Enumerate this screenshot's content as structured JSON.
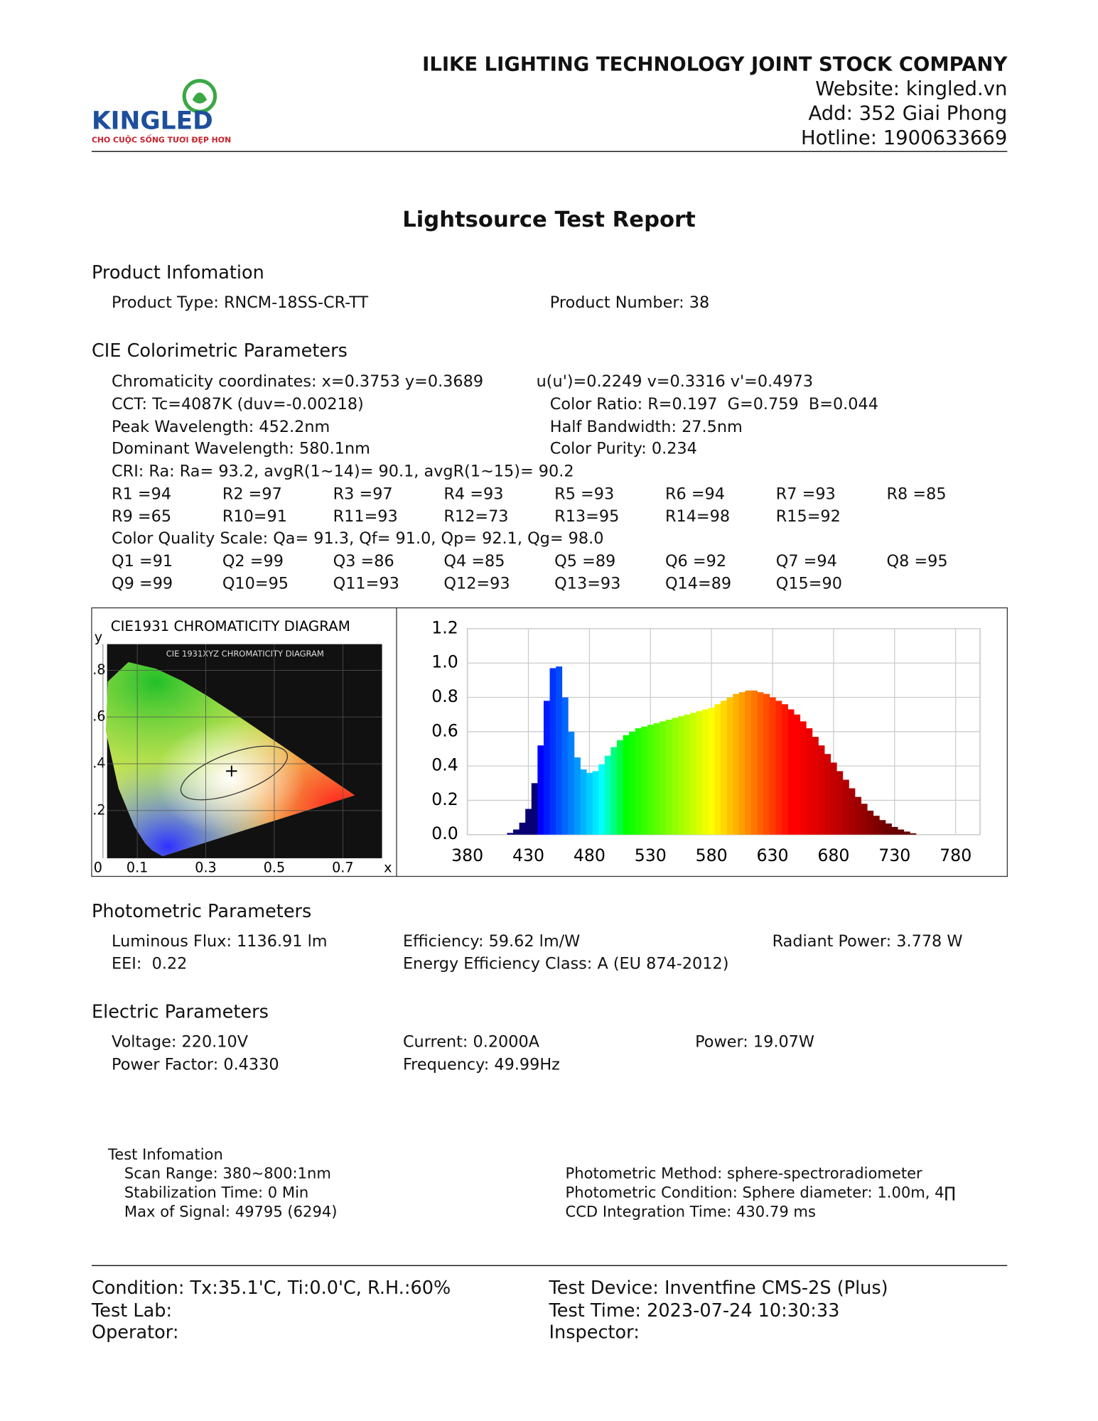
{
  "header": {
    "company": "ILIKE LIGHTING TECHNOLOGY JOINT STOCK COMPANY",
    "website": "Website: kingled.vn",
    "address": "Add: 352 Giai Phong",
    "hotline": "Hotline: 1900633669",
    "logo": "KINGLED",
    "tagline": "CHO CUỘC SỐNG TƯƠI ĐẸP HƠN"
  },
  "title": "Lightsource Test Report",
  "product": {
    "heading": "Product Infomation",
    "rows": [
      [
        "Product Type: RNCM-18SS-CR-TT",
        "Product Number: 38"
      ]
    ]
  },
  "cie": {
    "heading": "CIE Colorimetric Parameters",
    "rows": [
      [
        "Chromaticity coordinates: x=0.3753 y=0.3689",
        "u(u')=0.2249 v=0.3316 v'=0.4973"
      ],
      [
        "CCT: Tc=4087K (duv=-0.00218)",
        "Color Ratio: R=0.197  G=0.759  B=0.044"
      ],
      [
        "Peak Wavelength: 452.2nm",
        "Half Bandwidth: 27.5nm"
      ],
      [
        "Dominant Wavelength: 580.1nm",
        "Color Purity: 0.234"
      ],
      [
        "CRI: Ra: Ra= 93.2, avgR(1~14)= 90.1, avgR(1~15)= 90.2"
      ],
      [
        "R1 =94",
        "R2 =97",
        "R3 =97",
        "R4 =93",
        "R5 =93",
        "R6 =94",
        "R7 =93",
        "R8 =85"
      ],
      [
        "R9 =65",
        "R10=91",
        "R11=93",
        "R12=73",
        "R13=95",
        "R14=98",
        "R15=92"
      ],
      [
        "Color Quality Scale: Qa= 91.3, Qf= 91.0, Qp= 92.1, Qg= 98.0"
      ],
      [
        "Q1 =91",
        "Q2 =99",
        "Q3 =86",
        "Q4 =85",
        "Q5 =89",
        "Q6 =92",
        "Q7 =94",
        "Q8 =95"
      ],
      [
        "Q9 =99",
        "Q10=95",
        "Q11=93",
        "Q12=93",
        "Q13=93",
        "Q14=89",
        "Q15=90"
      ]
    ]
  },
  "chart_data": [
    {
      "type": "scatter",
      "title": "CIE1931 CHROMATICITY DIAGRAM",
      "subtitle": "CIE 1931XYZ CHROMATICITY DIAGRAM",
      "xlabel": "x",
      "ylabel": "y",
      "xlim": [
        0,
        0.8
      ],
      "ylim": [
        0,
        0.9
      ],
      "xticks": [
        0,
        0.1,
        0.3,
        0.5,
        0.7
      ],
      "yticks": [
        {
          "value": 0.2,
          "label": ".2"
        },
        {
          "value": 0.4,
          "label": ".4"
        },
        {
          "value": 0.6,
          "label": ".6"
        },
        {
          "value": 0.8,
          "label": ".8"
        }
      ],
      "x": [
        0.3753
      ],
      "values": [
        0.3689
      ]
    },
    {
      "type": "bar",
      "xlim": [
        380,
        800
      ],
      "ylim": [
        0,
        1.2
      ],
      "xticks": [
        380,
        430,
        480,
        530,
        580,
        630,
        680,
        730,
        780
      ],
      "yticks": [
        {
          "value": 0,
          "label": "0.0"
        },
        0.2,
        0.4,
        0.6,
        0.8,
        {
          "value": 1,
          "label": "1.0"
        },
        1.2
      ],
      "grid": true,
      "x": [
        380,
        385,
        390,
        395,
        400,
        405,
        410,
        415,
        420,
        425,
        430,
        435,
        440,
        445,
        450,
        455,
        460,
        465,
        470,
        475,
        480,
        485,
        490,
        495,
        500,
        505,
        510,
        515,
        520,
        525,
        530,
        535,
        540,
        545,
        550,
        555,
        560,
        565,
        570,
        575,
        580,
        585,
        590,
        595,
        600,
        605,
        610,
        615,
        620,
        625,
        630,
        635,
        640,
        645,
        650,
        655,
        660,
        665,
        670,
        675,
        680,
        685,
        690,
        695,
        700,
        705,
        710,
        715,
        720,
        725,
        730,
        735,
        740,
        745,
        750,
        755,
        760,
        765,
        770,
        775,
        780
      ],
      "values": [
        0,
        0,
        0,
        0,
        0,
        0,
        0,
        0.01,
        0.03,
        0.07,
        0.15,
        0.3,
        0.52,
        0.78,
        0.97,
        0.98,
        0.8,
        0.6,
        0.45,
        0.38,
        0.36,
        0.37,
        0.41,
        0.46,
        0.51,
        0.55,
        0.58,
        0.6,
        0.62,
        0.63,
        0.64,
        0.65,
        0.66,
        0.67,
        0.68,
        0.69,
        0.7,
        0.71,
        0.72,
        0.73,
        0.74,
        0.76,
        0.78,
        0.8,
        0.82,
        0.83,
        0.84,
        0.84,
        0.83,
        0.82,
        0.8,
        0.78,
        0.76,
        0.73,
        0.7,
        0.66,
        0.62,
        0.57,
        0.52,
        0.47,
        0.42,
        0.37,
        0.32,
        0.27,
        0.22,
        0.18,
        0.14,
        0.11,
        0.085,
        0.065,
        0.045,
        0.03,
        0.018,
        0.008,
        0,
        0,
        0,
        0,
        0,
        0,
        0
      ]
    }
  ],
  "photometric": {
    "heading": "Photometric Parameters",
    "rows": [
      [
        "Luminous Flux: 1136.91 lm",
        "Efficiency: 59.62 lm/W",
        "Radiant Power: 3.778 W"
      ],
      [
        "EEI:  0.22",
        "Energy Efficiency Class: A (EU 874-2012)"
      ]
    ]
  },
  "electric": {
    "heading": "Electric Parameters",
    "rows": [
      [
        "Voltage: 220.10V",
        "Current: 0.2000A",
        "Power: 19.07W"
      ],
      [
        "Power Factor: 0.4330",
        "Frequency: 49.99Hz"
      ]
    ]
  },
  "test_info": {
    "heading": "Test Infomation",
    "left": [
      "Scan Range: 380~800:1nm",
      "Stabilization Time: 0 Min",
      "Max of Signal: 49795 (6294)"
    ],
    "right": [
      "Photometric Method: sphere-spectroradiometer",
      "Photometric Condition: Sphere diameter: 1.00m, 4∏",
      "CCD Integration Time: 430.79 ms"
    ]
  },
  "footer": {
    "rows": [
      [
        "Condition: Tx:35.1'C, Ti:0.0'C, R.H.:60%",
        "Test Device: Inventfine CMS-2S (Plus)"
      ],
      [
        "Test Lab:",
        "Test Time: 2023-07-24 10:30:33"
      ],
      [
        "Operator:",
        "Inspector:"
      ]
    ]
  }
}
